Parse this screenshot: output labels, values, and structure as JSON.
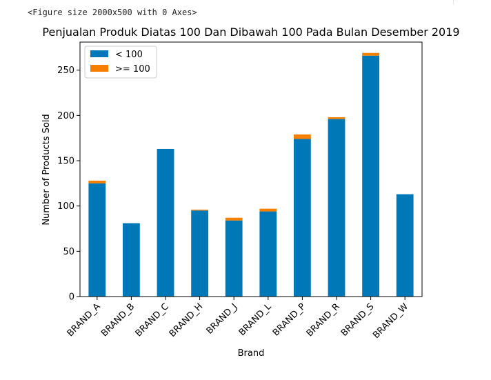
{
  "output_caption": "<Figure size 2000x500 with 0 Axes>",
  "chart_data": {
    "type": "bar",
    "stacked": true,
    "title": "Penjualan Produk Diatas 100 Dan Dibawah 100 Pada Bulan Desember 2019",
    "xlabel": "Brand",
    "ylabel": "Number of Products Sold",
    "categories": [
      "BRAND_A",
      "BRAND_B",
      "BRAND_C",
      "BRAND_H",
      "BRAND_J",
      "BRAND_L",
      "BRAND_P",
      "BRAND_R",
      "BRAND_S",
      "BRAND_W"
    ],
    "series": [
      {
        "name": "< 100",
        "color": "#0077b6",
        "values": [
          125,
          81,
          163,
          95,
          84,
          94,
          174,
          196,
          266,
          113
        ]
      },
      {
        "name": ">= 100",
        "color": "#f77f00",
        "values": [
          3,
          0,
          0,
          1,
          3,
          3,
          5,
          2,
          3,
          0
        ]
      }
    ],
    "ylim": [
      0,
      281
    ],
    "yticks": [
      0,
      50,
      100,
      150,
      200,
      250
    ],
    "grid": false,
    "legend_position": "top-left"
  }
}
